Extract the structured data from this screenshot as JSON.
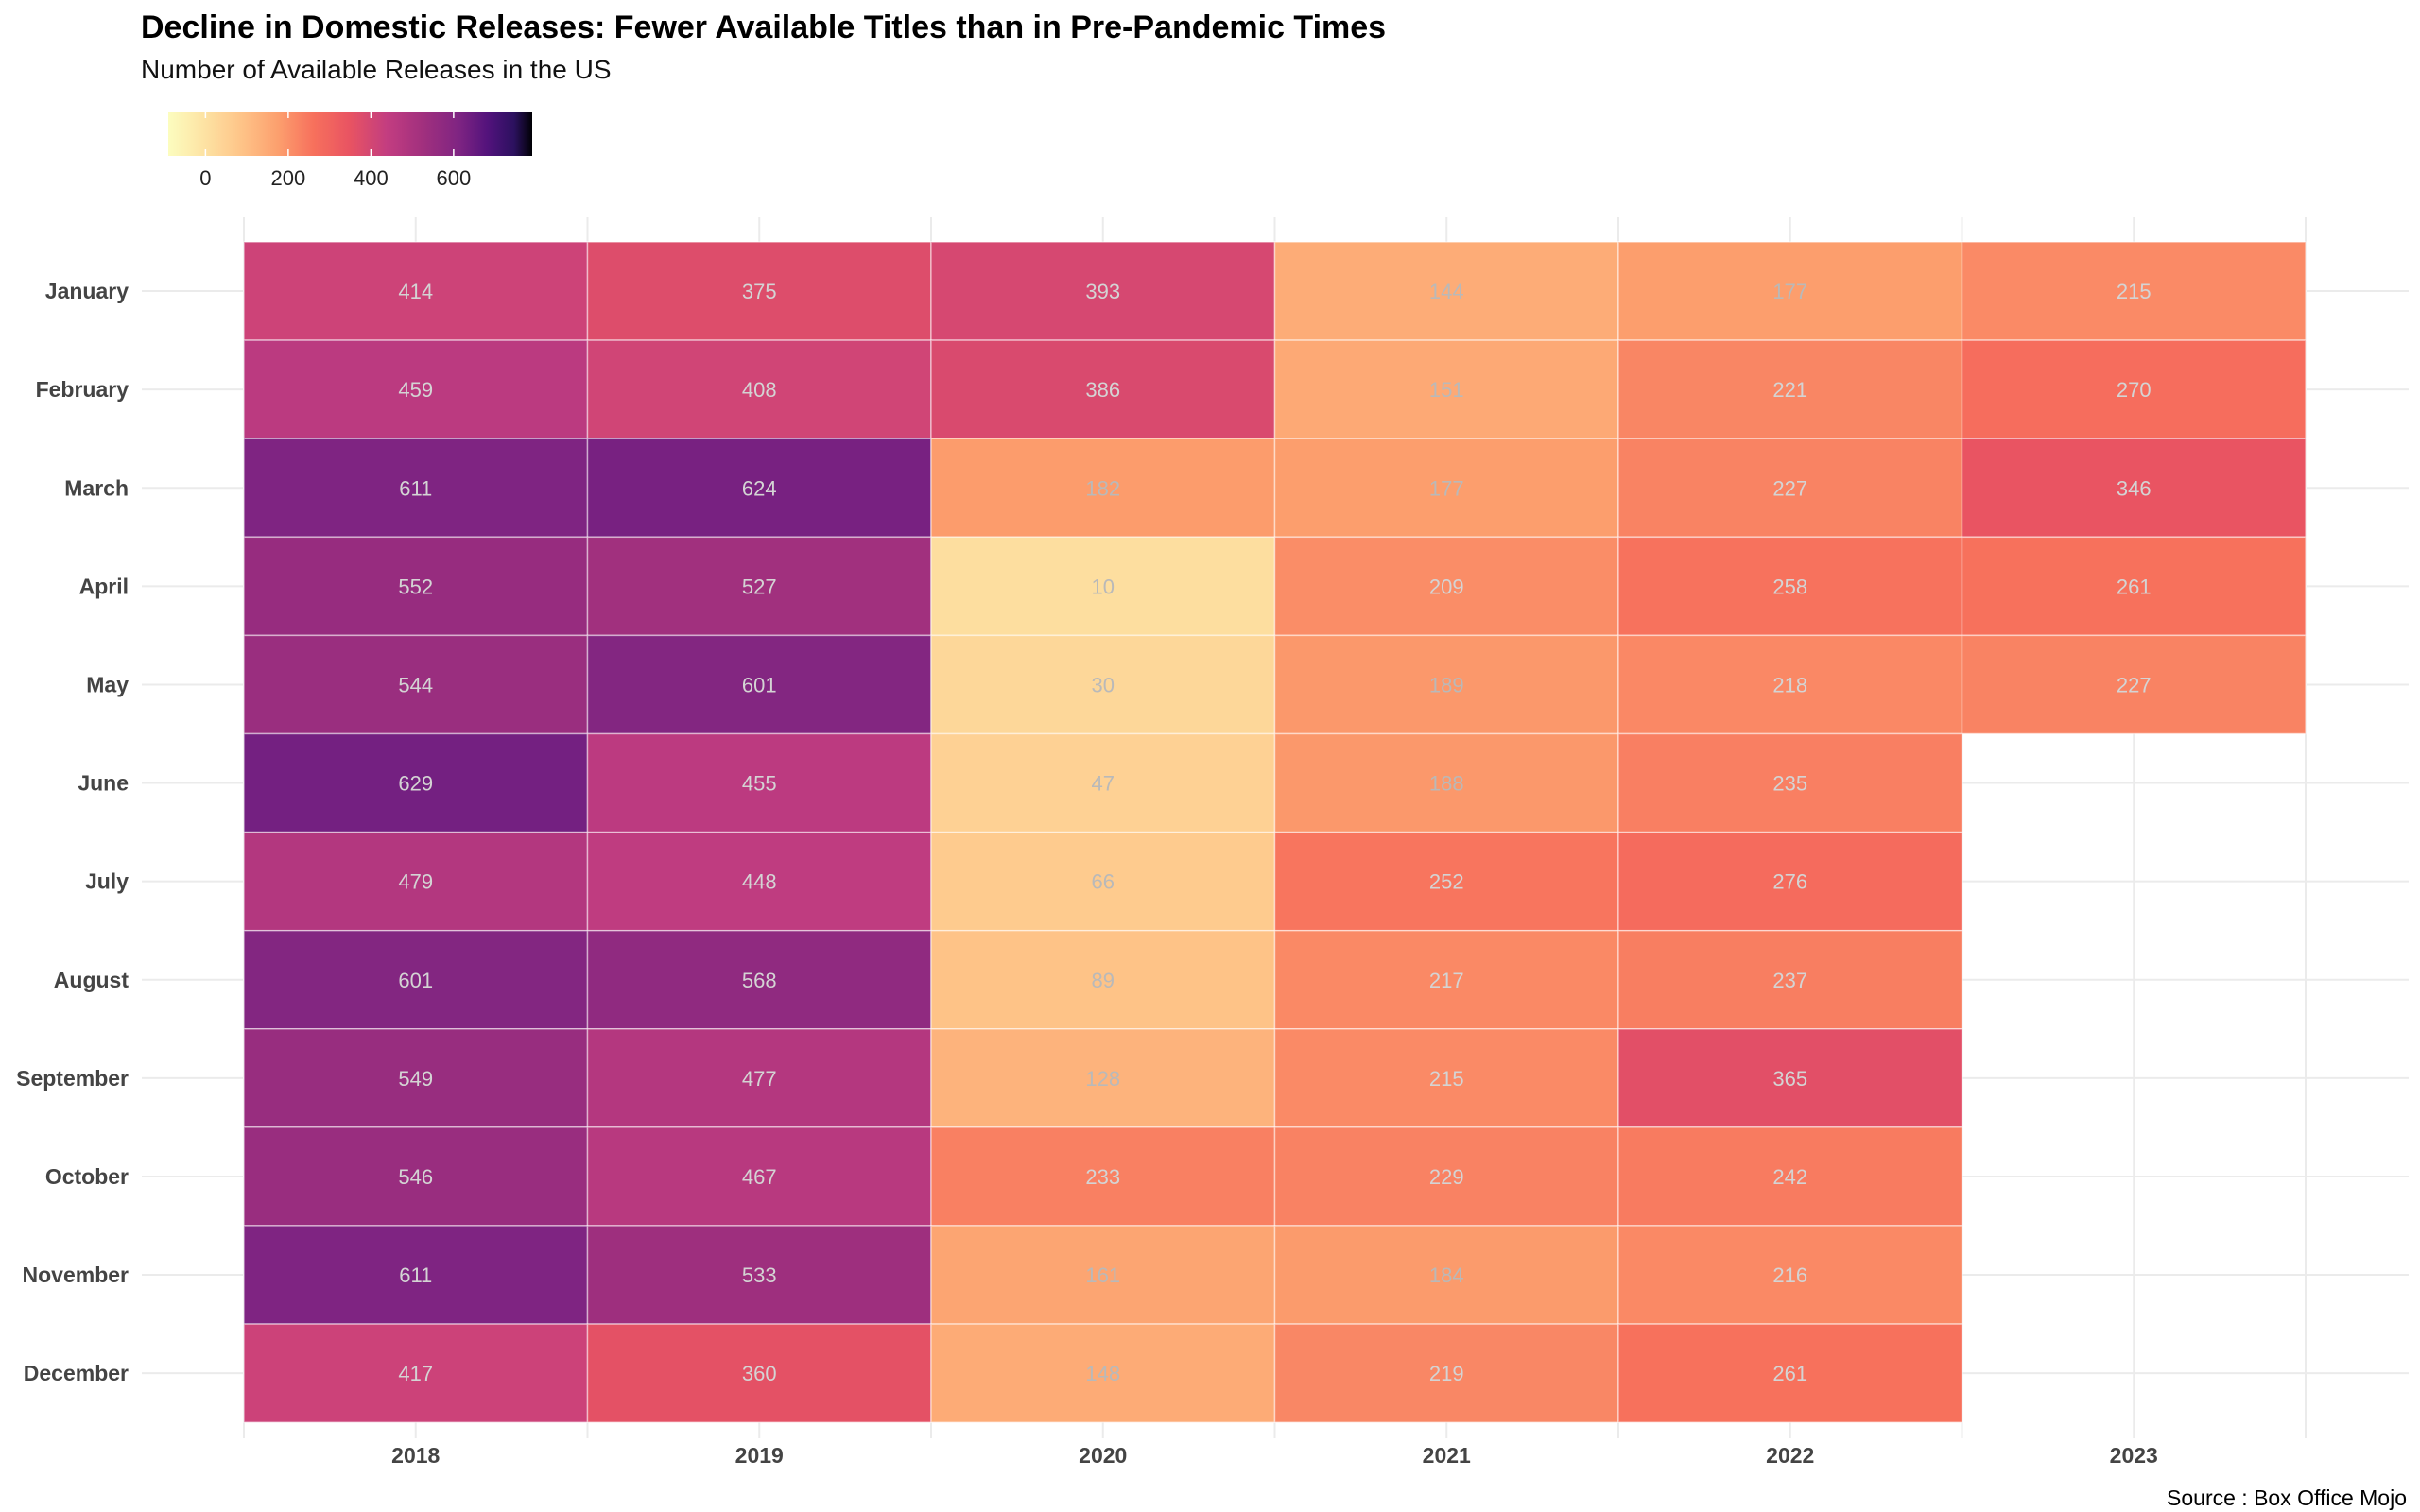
{
  "chart_data": {
    "type": "heatmap",
    "title": "Decline in Domestic Releases: Fewer Available Titles than in Pre-Pandemic Times",
    "subtitle": "Number of Available Releases in the US",
    "caption": "Source : Box Office Mojo",
    "x": [
      "2018",
      "2019",
      "2020",
      "2021",
      "2022",
      "2023"
    ],
    "y": [
      "January",
      "February",
      "March",
      "April",
      "May",
      "June",
      "July",
      "August",
      "September",
      "October",
      "November",
      "December"
    ],
    "values": [
      [
        414,
        375,
        393,
        144,
        177,
        215
      ],
      [
        459,
        408,
        386,
        151,
        221,
        270
      ],
      [
        611,
        624,
        182,
        177,
        227,
        346
      ],
      [
        552,
        527,
        10,
        209,
        258,
        261
      ],
      [
        544,
        601,
        30,
        189,
        218,
        227
      ],
      [
        629,
        455,
        47,
        188,
        235,
        null
      ],
      [
        479,
        448,
        66,
        252,
        276,
        null
      ],
      [
        601,
        568,
        89,
        217,
        237,
        null
      ],
      [
        549,
        477,
        128,
        215,
        365,
        null
      ],
      [
        546,
        467,
        233,
        229,
        242,
        null
      ],
      [
        611,
        533,
        161,
        184,
        216,
        null
      ],
      [
        417,
        360,
        148,
        219,
        261,
        null
      ]
    ],
    "colorscale": "magma (reversed)",
    "legend": {
      "position": "top-left",
      "range": [
        -90,
        790
      ],
      "ticks": [
        "0",
        "200",
        "400",
        "600"
      ]
    }
  }
}
